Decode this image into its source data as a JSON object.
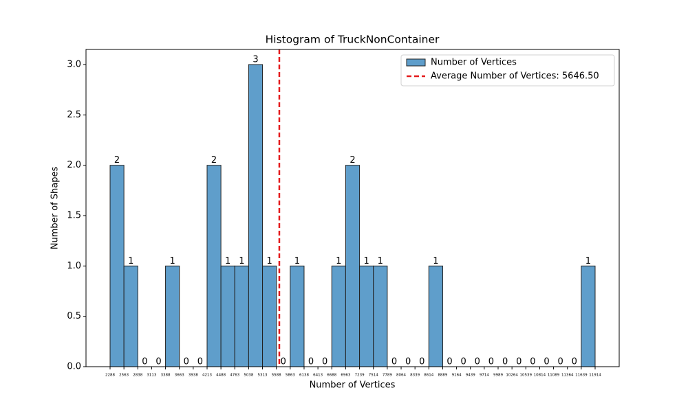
{
  "chart_data": {
    "type": "histogram",
    "title": "Histogram of TruckNonContainer",
    "x_label": "Number of Vertices",
    "y_label": "Number of Shapes",
    "bins": [
      2288,
      2563,
      2838,
      3113,
      3388,
      3663,
      3938,
      4213,
      4488,
      4763,
      5038,
      5313,
      5588,
      5863,
      6138,
      6413,
      6688,
      6963,
      7239,
      7514,
      7789,
      8064,
      8339,
      8614,
      8889,
      9164,
      9439,
      9714,
      9989,
      10264,
      10539,
      10814,
      11089,
      11364,
      11639,
      11914
    ],
    "series": [
      {
        "name": "Number of Vertices",
        "color": "#5f9ecb",
        "values": [
          2,
          1,
          0,
          0,
          1,
          0,
          0,
          2,
          1,
          1,
          3,
          1,
          0,
          1,
          0,
          0,
          1,
          2,
          1,
          1,
          0,
          0,
          0,
          1,
          0,
          0,
          0,
          0,
          0,
          0,
          0,
          0,
          0,
          0,
          1
        ]
      }
    ],
    "mean_line": {
      "value": 5646.5,
      "label": "Average Number of Vertices: 5646.50",
      "color": "#e41a1c"
    },
    "xlim": [
      1810,
      12392
    ],
    "xticks": [
      2288,
      2563,
      2838,
      3113,
      3388,
      3663,
      3938,
      4213,
      4488,
      4763,
      5038,
      5313,
      5588,
      5863,
      6138,
      6413,
      6688,
      6963,
      7239,
      7514,
      7789,
      8064,
      8339,
      8614,
      8889,
      9164,
      9439,
      9714,
      9989,
      10264,
      10539,
      10814,
      11089,
      11364,
      11639,
      11914
    ],
    "ylim": [
      0,
      3.15
    ],
    "yticks": [
      {
        "value": 0,
        "label": "0.0"
      },
      0.5,
      {
        "value": 1,
        "label": "1.0"
      },
      1.5,
      {
        "value": 2,
        "label": "2.0"
      },
      2.5,
      {
        "value": 3,
        "label": "3.0"
      }
    ],
    "legend": "upper right",
    "grid": false
  }
}
